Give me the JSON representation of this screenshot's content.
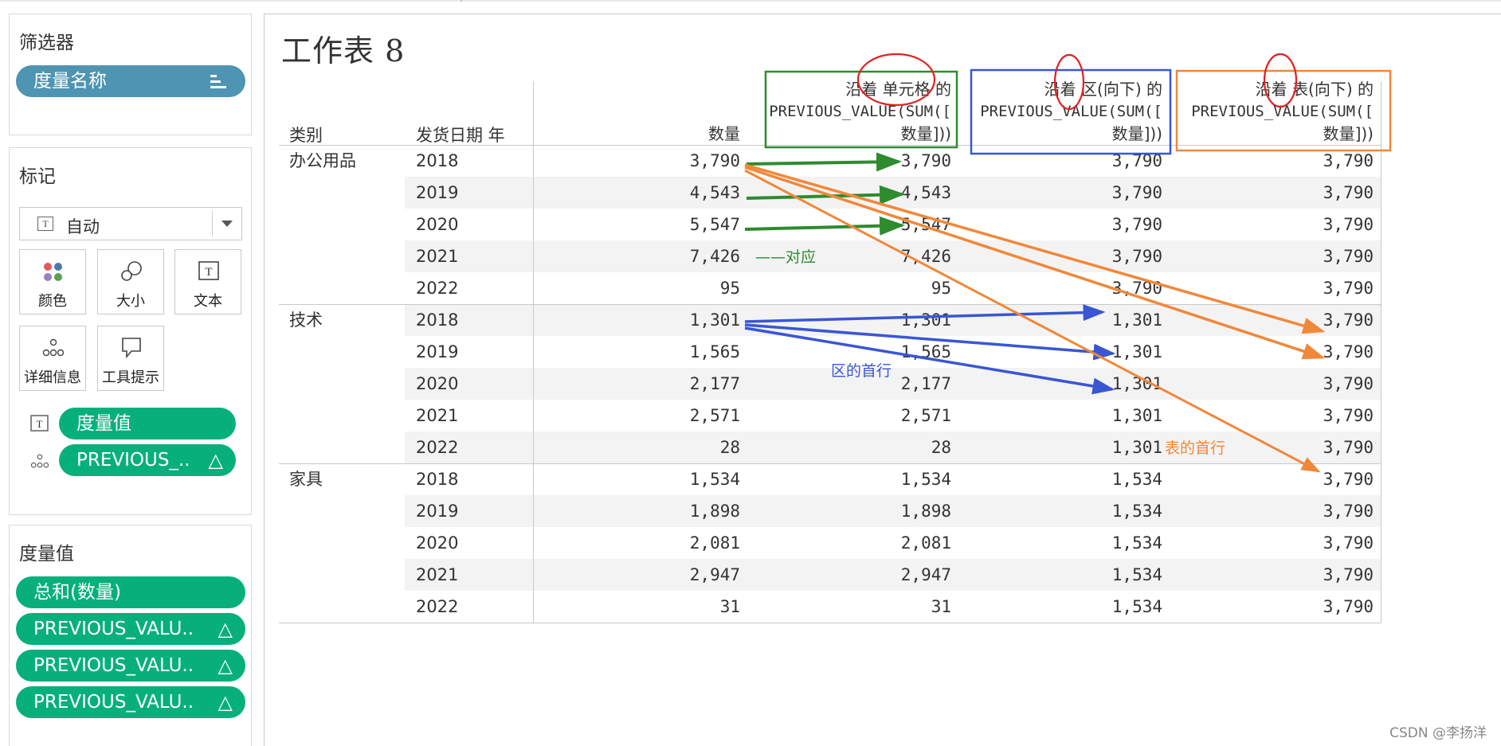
{
  "sidebar": {
    "filters": {
      "title": "筛选器",
      "pill": "度量名称"
    },
    "marks": {
      "title": "标记",
      "mark_type": "自动",
      "buttons": [
        {
          "label": "颜色",
          "icon": "color-icon"
        },
        {
          "label": "大小",
          "icon": "size-icon"
        },
        {
          "label": "文本",
          "icon": "text-icon"
        },
        {
          "label": "详细信息",
          "icon": "detail-icon"
        },
        {
          "label": "工具提示",
          "icon": "tooltip-icon"
        }
      ],
      "shelf": [
        {
          "icon": "text-icon",
          "label": "度量值"
        },
        {
          "icon": "detail-icon",
          "label": "PREVIOUS_..",
          "delta": "△"
        }
      ]
    },
    "measure_values": {
      "title": "度量值",
      "pills": [
        {
          "label": "总和(数量)",
          "delta": ""
        },
        {
          "label": "PREVIOUS_VALU..",
          "delta": "△"
        },
        {
          "label": "PREVIOUS_VALU..",
          "delta": "△"
        },
        {
          "label": "PREVIOUS_VALU..",
          "delta": "△"
        }
      ]
    }
  },
  "sheet": {
    "title": "工作表 8",
    "row_headers": [
      "类别",
      "发货日期 年"
    ],
    "columns": [
      {
        "line1": "数量",
        "line2": "",
        "line3": ""
      },
      {
        "line1": "沿着 单元格 的",
        "line2": "PREVIOUS_VALUE(SUM([",
        "line3": "数量]))"
      },
      {
        "line1": "沿着 区(向下) 的",
        "line2": "PREVIOUS_VALUE(SUM([",
        "line3": "数量]))"
      },
      {
        "line1": "沿着 表(向下) 的",
        "line2": "PREVIOUS_VALUE(SUM([",
        "line3": "数量]))"
      }
    ],
    "groups": [
      {
        "category": "办公用品",
        "rows": [
          {
            "year": "2018",
            "v": [
              "3,790",
              "3,790",
              "3,790",
              "3,790"
            ]
          },
          {
            "year": "2019",
            "v": [
              "4,543",
              "4,543",
              "3,790",
              "3,790"
            ]
          },
          {
            "year": "2020",
            "v": [
              "5,547",
              "5,547",
              "3,790",
              "3,790"
            ]
          },
          {
            "year": "2021",
            "v": [
              "7,426",
              "7,426",
              "3,790",
              "3,790"
            ]
          },
          {
            "year": "2022",
            "v": [
              "95",
              "95",
              "3,790",
              "3,790"
            ]
          }
        ]
      },
      {
        "category": "技术",
        "rows": [
          {
            "year": "2018",
            "v": [
              "1,301",
              "1,301",
              "1,301",
              "3,790"
            ]
          },
          {
            "year": "2019",
            "v": [
              "1,565",
              "1,565",
              "1,301",
              "3,790"
            ]
          },
          {
            "year": "2020",
            "v": [
              "2,177",
              "2,177",
              "1,301",
              "3,790"
            ]
          },
          {
            "year": "2021",
            "v": [
              "2,571",
              "2,571",
              "1,301",
              "3,790"
            ]
          },
          {
            "year": "2022",
            "v": [
              "28",
              "28",
              "1,301",
              "3,790"
            ]
          }
        ]
      },
      {
        "category": "家具",
        "rows": [
          {
            "year": "2018",
            "v": [
              "1,534",
              "1,534",
              "1,534",
              "3,790"
            ]
          },
          {
            "year": "2019",
            "v": [
              "1,898",
              "1,898",
              "1,534",
              "3,790"
            ]
          },
          {
            "year": "2020",
            "v": [
              "2,081",
              "2,081",
              "1,534",
              "3,790"
            ]
          },
          {
            "year": "2021",
            "v": [
              "2,947",
              "2,947",
              "1,534",
              "3,790"
            ]
          },
          {
            "year": "2022",
            "v": [
              "31",
              "31",
              "1,534",
              "3,790"
            ]
          }
        ]
      }
    ]
  },
  "annotations": {
    "green_label": "——对应",
    "blue_label": "区的首行",
    "orange_label": "表的首行",
    "colors": {
      "green": "#2e8b2e",
      "blue": "#3a56d4",
      "orange": "#f0883a",
      "red": "#e02020"
    }
  },
  "watermark": "CSDN @李扬洋"
}
